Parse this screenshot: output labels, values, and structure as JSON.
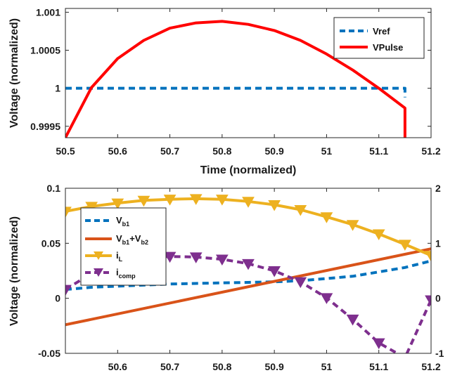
{
  "colors": {
    "blue": "#0072BD",
    "red": "#FF0000",
    "orange": "#D95319",
    "yellow": "#EDB120",
    "purple": "#7E2F8E"
  },
  "chart_data": [
    {
      "type": "line",
      "xlabel": "Time (normalized)",
      "ylabel": "Voltage (normalized)",
      "xlim": [
        50.5,
        51.2
      ],
      "ylim": [
        0.99935,
        1.00105
      ],
      "xticks": [
        "50.5",
        "50.6",
        "50.7",
        "50.8",
        "50.9",
        "51",
        "51.1",
        "51.2"
      ],
      "yticks": [
        "0.9995",
        "1",
        "1.0005",
        "1.001"
      ],
      "ytick_values": [
        0.9995,
        1,
        1.0005,
        1.001
      ],
      "legend_position": "top-right",
      "series": [
        {
          "name": "Vref",
          "style": "dashed",
          "color": "#0072BD",
          "x": [
            50.5,
            51.15,
            51.15
          ],
          "y": [
            1.0,
            1.0,
            0.99988
          ]
        },
        {
          "name": "VPulse",
          "style": "solid",
          "color": "#FF0000",
          "x": [
            50.5,
            50.55,
            50.6,
            50.65,
            50.7,
            50.75,
            50.8,
            50.85,
            50.9,
            50.95,
            51.0,
            51.05,
            51.1,
            51.15,
            51.15
          ],
          "y": [
            0.99935,
            1.00001,
            1.00039,
            1.00063,
            1.00079,
            1.00086,
            1.00088,
            1.00084,
            1.00076,
            1.00063,
            1.00045,
            1.00024,
            1.0,
            0.99974,
            0.9993
          ]
        }
      ]
    },
    {
      "type": "line",
      "xlabel": "",
      "ylabel": "Voltage (normalized)",
      "xlim": [
        50.5,
        51.2
      ],
      "ylim": [
        -0.05,
        0.1
      ],
      "y2lim": [
        -1,
        2
      ],
      "xticks": [
        "50.6",
        "50.7",
        "50.8",
        "50.9",
        "51",
        "51.1",
        "51.2"
      ],
      "xtick_values": [
        50.6,
        50.7,
        50.8,
        50.9,
        51.0,
        51.1,
        51.2
      ],
      "yticks": [
        "-0.05",
        "0",
        "0.05",
        "0.1"
      ],
      "ytick_values": [
        -0.05,
        0,
        0.05,
        0.1
      ],
      "y2ticks": [
        "-1",
        "0",
        "1",
        "2"
      ],
      "y2tick_values": [
        -1,
        0,
        1,
        2
      ],
      "legend_position": "center-left",
      "series": [
        {
          "name": "V",
          "sub": "b1",
          "axis": "left",
          "style": "dashed",
          "color": "#0072BD",
          "x": [
            50.5,
            50.55,
            50.6,
            50.65,
            50.7,
            50.75,
            50.8,
            50.85,
            50.9,
            50.95,
            51.0,
            51.05,
            51.1,
            51.15,
            51.2
          ],
          "y": [
            0.008,
            0.01,
            0.011,
            0.012,
            0.013,
            0.0135,
            0.014,
            0.0145,
            0.015,
            0.016,
            0.018,
            0.02,
            0.024,
            0.028,
            0.034
          ]
        },
        {
          "name": "V",
          "sub": "b1",
          "suffix": "+V",
          "sub2": "b2",
          "axis": "left",
          "style": "solid",
          "color": "#D95319",
          "x": [
            50.5,
            51.2
          ],
          "y": [
            -0.024,
            0.045
          ]
        },
        {
          "name": "i",
          "sub": "L",
          "axis": "right",
          "style": "solid",
          "marker": "triangle-down",
          "color": "#EDB120",
          "x": [
            50.5,
            50.55,
            50.6,
            50.65,
            50.7,
            50.75,
            50.8,
            50.85,
            50.9,
            50.95,
            51.0,
            51.05,
            51.1,
            51.15,
            51.2
          ],
          "y": [
            1.58,
            1.67,
            1.73,
            1.78,
            1.8,
            1.81,
            1.8,
            1.76,
            1.7,
            1.61,
            1.48,
            1.34,
            1.17,
            0.98,
            0.78
          ]
        },
        {
          "name": "i",
          "sub": "comp",
          "axis": "right",
          "style": "dashed",
          "marker": "triangle-down",
          "color": "#7E2F8E",
          "x": [
            50.5,
            50.55,
            50.6,
            50.65,
            50.7,
            50.75,
            50.8,
            50.85,
            50.9,
            50.95,
            51.0,
            51.05,
            51.1,
            51.15,
            51.2
          ],
          "y": [
            0.16,
            0.45,
            0.66,
            0.74,
            0.76,
            0.75,
            0.71,
            0.63,
            0.5,
            0.3,
            0.01,
            -0.38,
            -0.81,
            -1.08,
            -0.03
          ]
        }
      ]
    }
  ]
}
